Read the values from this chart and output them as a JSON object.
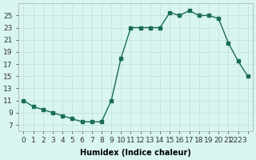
{
  "x": [
    0,
    1,
    2,
    3,
    4,
    5,
    6,
    7,
    8,
    9,
    10,
    11,
    12,
    13,
    14,
    15,
    16,
    17,
    18,
    19,
    20,
    21,
    22,
    23
  ],
  "y": [
    11,
    10,
    9.5,
    9,
    8.5,
    8,
    7.5,
    7.5,
    7.5,
    11,
    18,
    23,
    23,
    23,
    23,
    25.5,
    25,
    25.8,
    25,
    25,
    24.5,
    20.5,
    17.5,
    15
  ],
  "line_color": "#1a6b5a",
  "marker_color": "#1a6b5a",
  "bg_color": "#d8f5f0",
  "grid_color": "#c0ddd8",
  "xlabel": "Humidex (Indice chaleur)",
  "xlim": [
    -0.5,
    23.5
  ],
  "ylim": [
    6,
    27
  ],
  "yticks": [
    7,
    9,
    11,
    13,
    15,
    17,
    19,
    21,
    23,
    25
  ],
  "xticks": [
    0,
    1,
    2,
    3,
    4,
    5,
    6,
    7,
    8,
    9,
    10,
    11,
    12,
    13,
    14,
    15,
    16,
    17,
    18,
    19,
    20,
    21,
    22,
    23
  ],
  "xtick_labels": [
    "0",
    "1",
    "2",
    "3",
    "4",
    "5",
    "6",
    "7",
    "8",
    "9",
    "10",
    "11",
    "12",
    "13",
    "14",
    "15",
    "16",
    "17",
    "18",
    "19",
    "20",
    "21",
    "2223",
    ""
  ],
  "xlabel_fontsize": 7,
  "tick_fontsize": 6.5,
  "marker_size": 2.5,
  "line_width": 1.0
}
